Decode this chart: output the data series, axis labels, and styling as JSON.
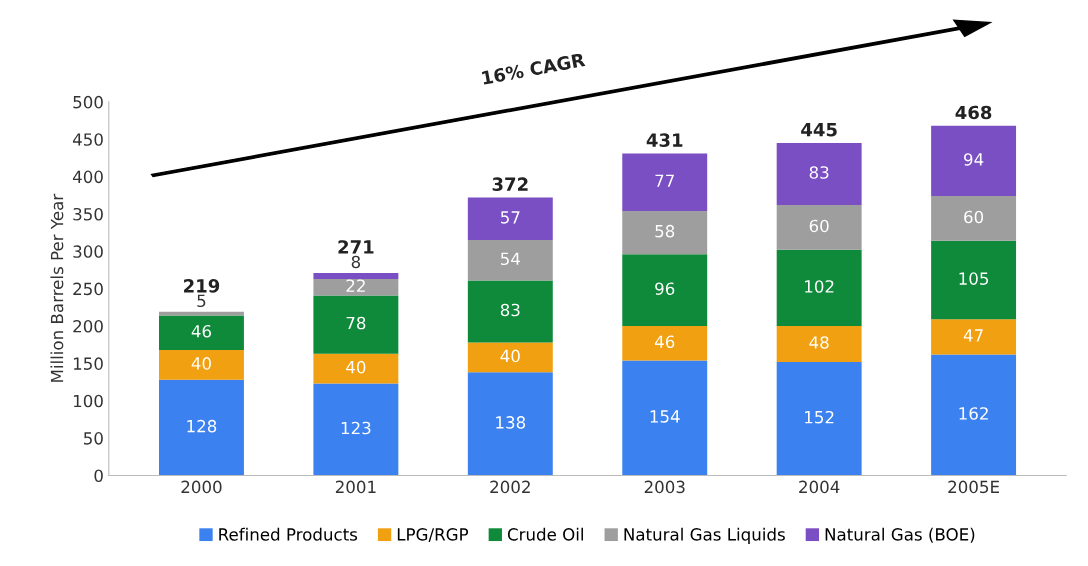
{
  "chart_data": {
    "type": "bar",
    "stacked": true,
    "ylabel": "Million Barrels Per Year",
    "categories": [
      "2000",
      "2001",
      "2002",
      "2003",
      "2004",
      "2005E"
    ],
    "series": [
      {
        "name": "Refined Products",
        "color": "#3b82f0",
        "values": [
          128,
          123,
          138,
          154,
          152,
          162
        ]
      },
      {
        "name": "LPG/RGP",
        "color": "#f0a010",
        "values": [
          40,
          40,
          40,
          46,
          48,
          47
        ]
      },
      {
        "name": "Crude Oil",
        "color": "#0e8a3a",
        "values": [
          46,
          78,
          83,
          96,
          102,
          105
        ]
      },
      {
        "name": "Natural Gas Liquids",
        "color": "#9e9e9e",
        "values": [
          5,
          22,
          54,
          58,
          60,
          60
        ]
      },
      {
        "name": "Natural Gas (BOE)",
        "color": "#7b4fc4",
        "values": [
          null,
          8,
          57,
          77,
          83,
          94
        ]
      }
    ],
    "data_labels": true,
    "totals": [
      "219",
      "271",
      "372",
      "431",
      "445",
      "468"
    ],
    "ylim": [
      0,
      500
    ],
    "yticks": [
      0,
      50,
      100,
      150,
      200,
      250,
      300,
      350,
      400,
      450,
      500
    ],
    "grid": false,
    "legend": "bottom",
    "annotations": [
      "16% CAGR"
    ]
  }
}
